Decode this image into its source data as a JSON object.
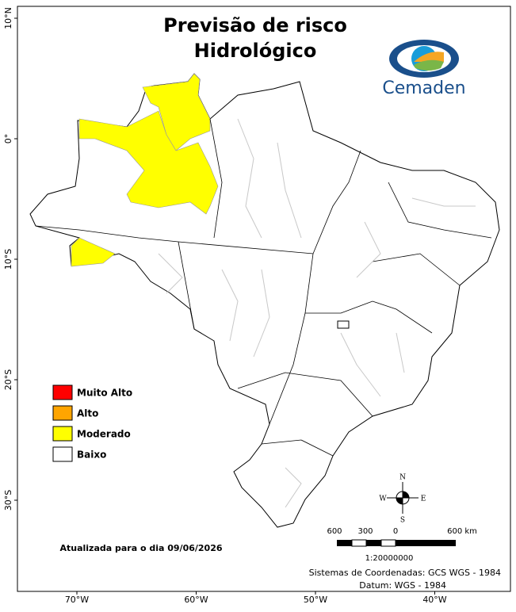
{
  "header": {
    "title_line1": "Previsão de risco",
    "title_line2": "Hidrológico",
    "logo": "Cemaden"
  },
  "legend": [
    {
      "label": "Muito Alto",
      "color": "#ff0000"
    },
    {
      "label": "Alto",
      "color": "#ffa500"
    },
    {
      "label": "Moderado",
      "color": "#ffff00"
    },
    {
      "label": "Baixo",
      "color": "#ffffff"
    }
  ],
  "map": {
    "lon_ticks": [
      {
        "value": -70,
        "label": "70°W"
      },
      {
        "value": -60,
        "label": "60°W"
      },
      {
        "value": -50,
        "label": "50°W"
      },
      {
        "value": -40,
        "label": "40°W"
      }
    ],
    "lat_ticks": [
      {
        "value": 10,
        "label": "10°N"
      },
      {
        "value": 0,
        "label": "0°"
      },
      {
        "value": -10,
        "label": "10°S"
      },
      {
        "value": -20,
        "label": "20°S"
      },
      {
        "value": -30,
        "label": "30°S"
      }
    ],
    "compass": {
      "n": "N",
      "s": "S",
      "e": "E",
      "w": "W"
    },
    "scale": {
      "labels": [
        "600",
        "300",
        "0",
        "600 km"
      ],
      "ratio": "1:20000000"
    }
  },
  "footer": {
    "updated": "Atualizada para o dia 09/06/2026",
    "system": "Sistemas de Coordenadas: GCS WGS - 1984",
    "datum": "Datum: WGS - 1984"
  }
}
